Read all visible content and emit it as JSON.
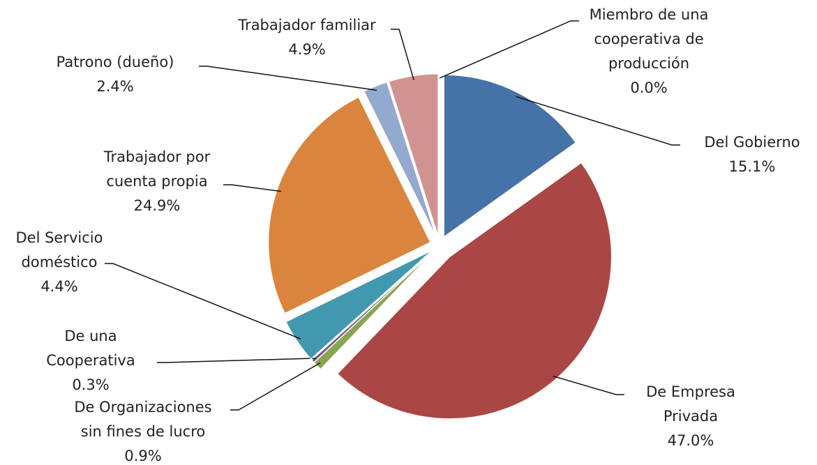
{
  "chart_data": {
    "type": "pie",
    "categories": [
      "Del Gobierno",
      "De Empresa\nPrivada",
      "De Organizaciones\nsin fines de lucro",
      "De una\nCooperativa",
      "Del Servicio\ndoméstico",
      "Trabajador por\ncuenta propia",
      "Patrono (dueño)",
      "Trabajador familiar",
      "Miembro de una\ncooperativa de\nproducción"
    ],
    "values": [
      15.1,
      47.0,
      0.9,
      0.3,
      4.4,
      24.9,
      2.4,
      4.9,
      0.0
    ],
    "value_labels": [
      "15.1%",
      "47.0%",
      "0.9%",
      "0.3%",
      "4.4%",
      "24.9%",
      "2.4%",
      "4.9%",
      "0.0%"
    ],
    "colors": [
      "#4572a7",
      "#aa4643",
      "#89a54e",
      "#71588f",
      "#4198af",
      "#db843d",
      "#93a9cf",
      "#d19392",
      "#a47d7c"
    ]
  }
}
